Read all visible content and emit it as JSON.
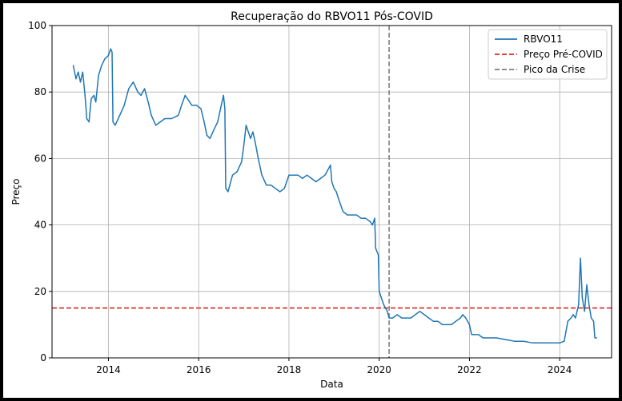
{
  "chart_data": {
    "type": "line",
    "title": "Recuperação do RBVO11 Pós-COVID",
    "xlabel": "Data",
    "ylabel": "Preço",
    "xlim": [
      2012.75,
      2025.15
    ],
    "ylim": [
      0,
      100
    ],
    "x_ticks": [
      2014,
      2016,
      2018,
      2020,
      2022,
      2024
    ],
    "y_ticks": [
      0,
      20,
      40,
      60,
      80,
      100
    ],
    "grid": true,
    "legend_position": "top-right",
    "legend": [
      {
        "label": "RBVO11",
        "style": "solid",
        "color": "#1f77b4"
      },
      {
        "label": "Preço Pré-COVID",
        "style": "dashed",
        "color": "#d62728"
      },
      {
        "label": "Pico da Crise",
        "style": "dashed",
        "color": "#7f7f7f"
      }
    ],
    "reference_lines": {
      "horizontal": {
        "name": "Preço Pré-COVID",
        "y": 15,
        "color": "#d62728"
      },
      "vertical": {
        "name": "Pico da Crise",
        "x": 2020.22,
        "color": "#7f7f7f"
      }
    },
    "series": [
      {
        "name": "RBVO11",
        "color": "#1f77b4",
        "points": [
          [
            2013.22,
            88
          ],
          [
            2013.28,
            84
          ],
          [
            2013.33,
            86
          ],
          [
            2013.38,
            83
          ],
          [
            2013.43,
            86
          ],
          [
            2013.48,
            79
          ],
          [
            2013.52,
            72
          ],
          [
            2013.57,
            71
          ],
          [
            2013.62,
            78
          ],
          [
            2013.68,
            79
          ],
          [
            2013.72,
            77
          ],
          [
            2013.78,
            85
          ],
          [
            2013.85,
            88
          ],
          [
            2013.92,
            90
          ],
          [
            2014.0,
            91
          ],
          [
            2014.05,
            93
          ],
          [
            2014.08,
            92
          ],
          [
            2014.1,
            71
          ],
          [
            2014.15,
            70
          ],
          [
            2014.25,
            73
          ],
          [
            2014.35,
            76
          ],
          [
            2014.45,
            81
          ],
          [
            2014.55,
            83
          ],
          [
            2014.65,
            80
          ],
          [
            2014.72,
            79
          ],
          [
            2014.8,
            81
          ],
          [
            2014.88,
            77
          ],
          [
            2014.95,
            73
          ],
          [
            2015.05,
            70
          ],
          [
            2015.15,
            71
          ],
          [
            2015.25,
            72
          ],
          [
            2015.4,
            72
          ],
          [
            2015.55,
            73
          ],
          [
            2015.62,
            76
          ],
          [
            2015.7,
            79
          ],
          [
            2015.75,
            78
          ],
          [
            2015.85,
            76
          ],
          [
            2015.95,
            76
          ],
          [
            2016.05,
            75
          ],
          [
            2016.12,
            71
          ],
          [
            2016.18,
            67
          ],
          [
            2016.25,
            66
          ],
          [
            2016.35,
            69
          ],
          [
            2016.42,
            71
          ],
          [
            2016.5,
            76
          ],
          [
            2016.55,
            79
          ],
          [
            2016.58,
            75
          ],
          [
            2016.6,
            51
          ],
          [
            2016.65,
            50
          ],
          [
            2016.75,
            55
          ],
          [
            2016.85,
            56
          ],
          [
            2016.95,
            59
          ],
          [
            2017.0,
            64
          ],
          [
            2017.05,
            70
          ],
          [
            2017.1,
            68
          ],
          [
            2017.15,
            66
          ],
          [
            2017.2,
            68
          ],
          [
            2017.25,
            65
          ],
          [
            2017.32,
            60
          ],
          [
            2017.4,
            55
          ],
          [
            2017.5,
            52
          ],
          [
            2017.6,
            52
          ],
          [
            2017.7,
            51
          ],
          [
            2017.8,
            50
          ],
          [
            2017.9,
            51
          ],
          [
            2018.0,
            55
          ],
          [
            2018.1,
            55
          ],
          [
            2018.2,
            55
          ],
          [
            2018.3,
            54
          ],
          [
            2018.4,
            55
          ],
          [
            2018.5,
            54
          ],
          [
            2018.6,
            53
          ],
          [
            2018.7,
            54
          ],
          [
            2018.8,
            55
          ],
          [
            2018.88,
            57
          ],
          [
            2018.92,
            58
          ],
          [
            2018.95,
            53
          ],
          [
            2019.0,
            51
          ],
          [
            2019.05,
            50
          ],
          [
            2019.12,
            47
          ],
          [
            2019.2,
            44
          ],
          [
            2019.3,
            43
          ],
          [
            2019.4,
            43
          ],
          [
            2019.5,
            43
          ],
          [
            2019.6,
            42
          ],
          [
            2019.7,
            42
          ],
          [
            2019.8,
            41
          ],
          [
            2019.85,
            40
          ],
          [
            2019.9,
            42
          ],
          [
            2019.92,
            33
          ],
          [
            2019.95,
            32
          ],
          [
            2019.98,
            31
          ],
          [
            2020.0,
            20
          ],
          [
            2020.05,
            18
          ],
          [
            2020.1,
            16
          ],
          [
            2020.18,
            14
          ],
          [
            2020.22,
            12
          ],
          [
            2020.3,
            12
          ],
          [
            2020.4,
            13
          ],
          [
            2020.5,
            12
          ],
          [
            2020.6,
            12
          ],
          [
            2020.7,
            12
          ],
          [
            2020.8,
            13
          ],
          [
            2020.9,
            14
          ],
          [
            2021.0,
            13
          ],
          [
            2021.1,
            12
          ],
          [
            2021.2,
            11
          ],
          [
            2021.3,
            11
          ],
          [
            2021.4,
            10
          ],
          [
            2021.5,
            10
          ],
          [
            2021.6,
            10
          ],
          [
            2021.7,
            11
          ],
          [
            2021.8,
            12
          ],
          [
            2021.85,
            13
          ],
          [
            2021.92,
            12
          ],
          [
            2022.0,
            10
          ],
          [
            2022.05,
            7
          ],
          [
            2022.1,
            7
          ],
          [
            2022.2,
            7
          ],
          [
            2022.3,
            6
          ],
          [
            2022.4,
            6
          ],
          [
            2022.6,
            6
          ],
          [
            2022.8,
            5.5
          ],
          [
            2023.0,
            5
          ],
          [
            2023.2,
            5
          ],
          [
            2023.4,
            4.5
          ],
          [
            2023.6,
            4.5
          ],
          [
            2023.8,
            4.5
          ],
          [
            2024.0,
            4.5
          ],
          [
            2024.1,
            5
          ],
          [
            2024.18,
            11
          ],
          [
            2024.25,
            12
          ],
          [
            2024.3,
            13
          ],
          [
            2024.35,
            12
          ],
          [
            2024.42,
            16
          ],
          [
            2024.46,
            30
          ],
          [
            2024.5,
            18
          ],
          [
            2024.55,
            14
          ],
          [
            2024.6,
            22
          ],
          [
            2024.65,
            16
          ],
          [
            2024.7,
            12
          ],
          [
            2024.75,
            11
          ],
          [
            2024.78,
            6
          ],
          [
            2024.82,
            6
          ]
        ]
      }
    ]
  }
}
